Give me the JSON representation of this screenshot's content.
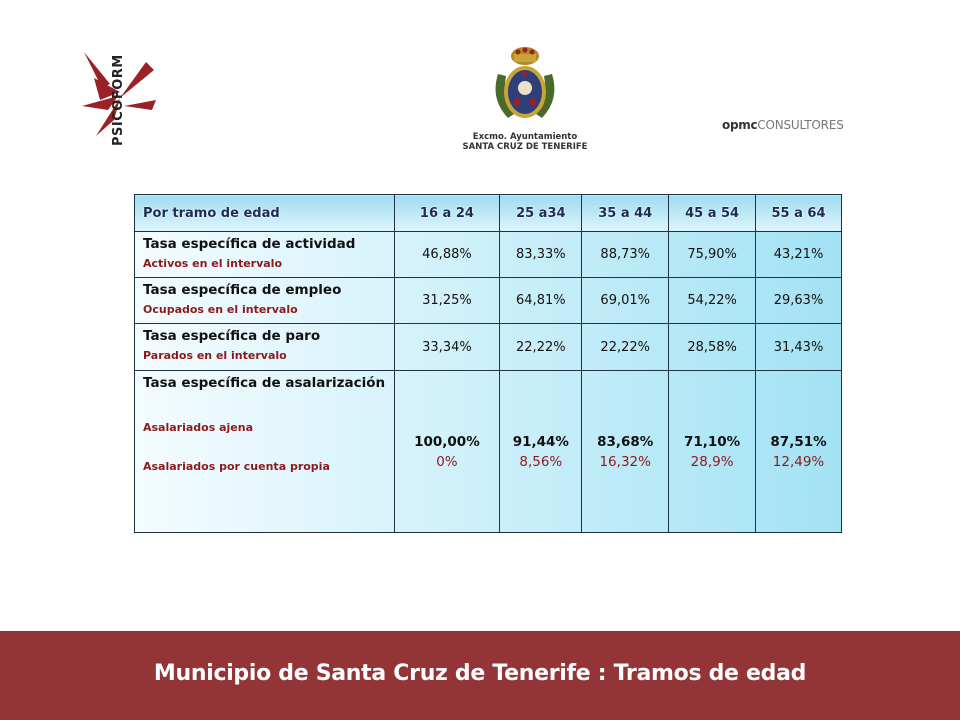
{
  "logos": {
    "psicoform": "PSICOFORM",
    "ayuntamiento": {
      "line1": "Excmo. Ayuntamiento",
      "line2": "SANTA CRUZ DE TENERIFE"
    },
    "opmc": {
      "bold": "opmc",
      "light": "CONSULTORES"
    }
  },
  "table": {
    "header": [
      "Por tramo de edad",
      "16 a 24",
      "25 a34",
      "35 a 44",
      "45 a 54",
      "55 a 64"
    ],
    "rows": [
      {
        "label": "Tasa específica de actividad",
        "sub": "Activos en el intervalo",
        "values": [
          "46,88%",
          "83,33%",
          "88,73%",
          "75,90%",
          "43,21%"
        ]
      },
      {
        "label": "Tasa específica de empleo",
        "sub": "Ocupados en el intervalo",
        "values": [
          "31,25%",
          "64,81%",
          "69,01%",
          "54,22%",
          "29,63%"
        ]
      },
      {
        "label": "Tasa específica de paro",
        "sub": "Parados en el intervalo",
        "values": [
          "33,34%",
          "22,22%",
          "22,22%",
          "28,58%",
          "31,43%"
        ]
      },
      {
        "label": "Tasa específica de asalarización",
        "sub1": "Asalariados ajena",
        "sub2": "Asalariados por cuenta propia",
        "values_top": [
          "100,00%",
          "91,44%",
          "83,68%",
          "71,10%",
          "87,51%"
        ],
        "values_bottom": [
          "0%",
          "8,56%",
          "16,32%",
          "28,9%",
          "12,49%"
        ]
      }
    ]
  },
  "footer": {
    "title": "Municipio de Santa Cruz de Tenerife : Tramos de edad"
  },
  "colors": {
    "footer_bg": "#933537",
    "sub_label": "#8b1a1a",
    "header_text": "#1c2c5a"
  }
}
